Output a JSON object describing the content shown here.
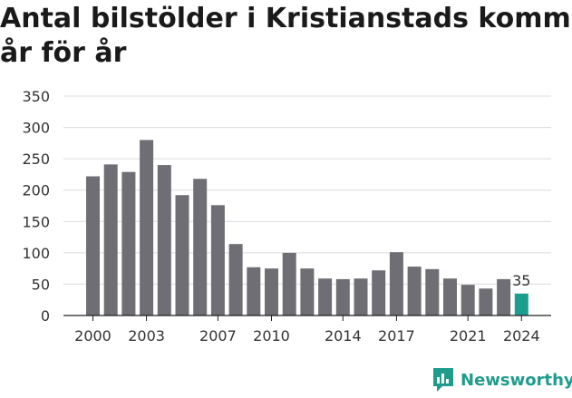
{
  "title": "Antal bilstölder i Kristianstads kommun år för år",
  "title_line1": "Antal bilstölder i Kristianstads kommun",
  "title_line2": "år för år",
  "brand": {
    "name": "Newsworthy",
    "color": "#1f9c8c"
  },
  "colors": {
    "bar": "#6f6e74",
    "highlight": "#1a9e8f"
  },
  "chart_data": {
    "type": "bar",
    "title": "Antal bilstölder i Kristianstads kommun år för år",
    "categories": [
      "2000",
      "2001",
      "2002",
      "2003",
      "2004",
      "2005",
      "2006",
      "2007",
      "2008",
      "2009",
      "2010",
      "2011",
      "2012",
      "2013",
      "2014",
      "2015",
      "2016",
      "2017",
      "2018",
      "2019",
      "2020",
      "2021",
      "2022",
      "2023",
      "2024"
    ],
    "values": [
      222,
      241,
      229,
      280,
      240,
      192,
      218,
      176,
      114,
      77,
      75,
      100,
      75,
      59,
      58,
      59,
      72,
      101,
      78,
      74,
      59,
      49,
      43,
      58,
      35
    ],
    "highlight_index": 24,
    "highlight_label": "35",
    "ylim": [
      0,
      350
    ],
    "yticks": [
      "0",
      "50",
      "100",
      "150",
      "200",
      "250",
      "300",
      "350"
    ],
    "xtick_labels": [
      "2000",
      "2003",
      "2007",
      "2010",
      "2014",
      "2017",
      "2021",
      "2024"
    ],
    "grid": true,
    "xlabel": "",
    "ylabel": ""
  }
}
